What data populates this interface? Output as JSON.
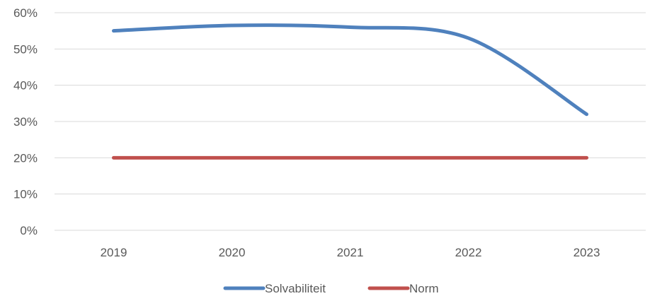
{
  "chart_data": {
    "type": "line",
    "categories": [
      "2019",
      "2020",
      "2021",
      "2022",
      "2023"
    ],
    "series": [
      {
        "name": "Solvabiliteit",
        "values": [
          55,
          56.5,
          56,
          53,
          32
        ],
        "color": "#4f81bd"
      },
      {
        "name": "Norm",
        "values": [
          20,
          20,
          20,
          20,
          20
        ],
        "color": "#c0504d"
      }
    ],
    "y_ticks": [
      "0%",
      "10%",
      "20%",
      "30%",
      "40%",
      "50%",
      "60%"
    ],
    "y_tick_values": [
      0,
      10,
      20,
      30,
      40,
      50,
      60
    ],
    "ylim": [
      0,
      60
    ],
    "grid": true,
    "smooth": true,
    "legend_position": "bottom",
    "colors": {
      "gridline": "#d9d9d9",
      "axis_text": "#595959"
    }
  }
}
